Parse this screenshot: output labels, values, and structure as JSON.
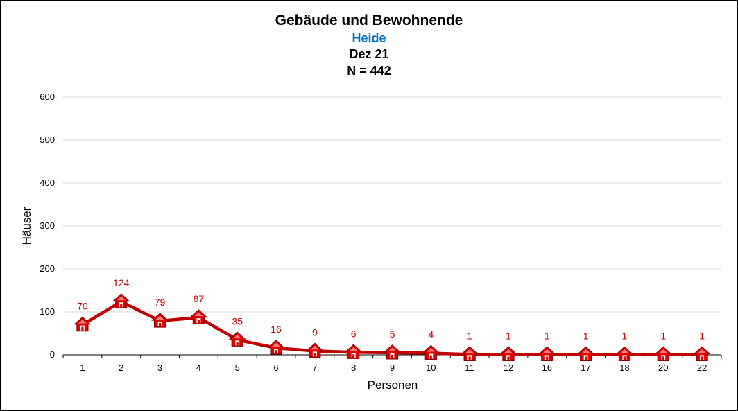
{
  "chart_data": {
    "type": "line",
    "title": "Gebäude und Bewohnende",
    "subtitle_lines": [
      "Heide",
      "Dez 21",
      "N = 442"
    ],
    "xlabel": "Personen",
    "ylabel": "Häuser",
    "categories": [
      "1",
      "2",
      "3",
      "4",
      "5",
      "6",
      "7",
      "8",
      "9",
      "10",
      "11",
      "12",
      "16",
      "17",
      "18",
      "20",
      "22"
    ],
    "series": [
      {
        "values": [
          70,
          124,
          79,
          87,
          35,
          16,
          9,
          6,
          5,
          4,
          1,
          1,
          1,
          1,
          1,
          1,
          1
        ]
      }
    ],
    "ylim": [
      0,
      600
    ],
    "yticks": [
      0,
      100,
      200,
      300,
      400,
      500,
      600
    ],
    "grid": true,
    "marker": "house-icon",
    "colors": {
      "line": "#c00000",
      "marker": "#e00000",
      "label": "#c00000",
      "subtitle": "#0070c0",
      "grid": "#d9d9d9"
    }
  }
}
